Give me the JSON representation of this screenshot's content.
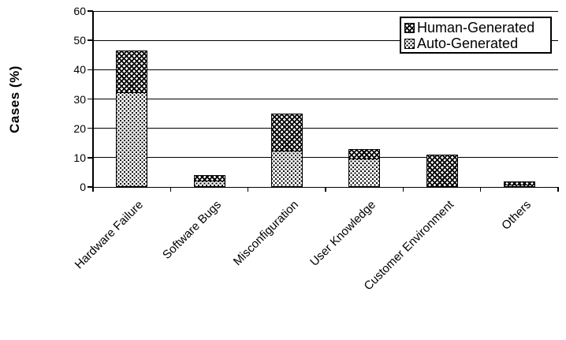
{
  "figure": {
    "background": "#ffffff",
    "ink_color": "#000000"
  },
  "legend": {
    "position": "top-right",
    "items": [
      {
        "label": "Human-Generated",
        "pattern": "dark-crosshatch",
        "swatch_icon": "crosshatch-swatch-icon"
      },
      {
        "label": "Auto-Generated",
        "pattern": "light-dots",
        "swatch_icon": "dotted-swatch-icon"
      }
    ]
  },
  "chart_data": {
    "type": "bar",
    "stacked": true,
    "title": "",
    "xlabel": "",
    "ylabel": "Cases (%)",
    "categories": [
      "Hardware Failure",
      "Software Bugs",
      "Misconfiguration",
      "User Knowledge",
      "Customer Environment",
      "Others"
    ],
    "series": [
      {
        "name": "Auto-Generated",
        "pattern": "light-dots",
        "values": [
          32,
          2,
          12,
          9.5,
          0,
          0.5
        ]
      },
      {
        "name": "Human-Generated",
        "pattern": "dark-crosshatch",
        "values": [
          14.5,
          2,
          13,
          3.5,
          11,
          1.5
        ]
      }
    ],
    "stack_totals": [
      46.5,
      4,
      25,
      13,
      11,
      2
    ],
    "ylim": [
      0,
      60
    ],
    "yticks": [
      0,
      10,
      20,
      30,
      40,
      50,
      60
    ],
    "grid": true,
    "grid_axis": "y",
    "x_tick_label_rotation_deg": 45,
    "legend_position": "top-right"
  }
}
